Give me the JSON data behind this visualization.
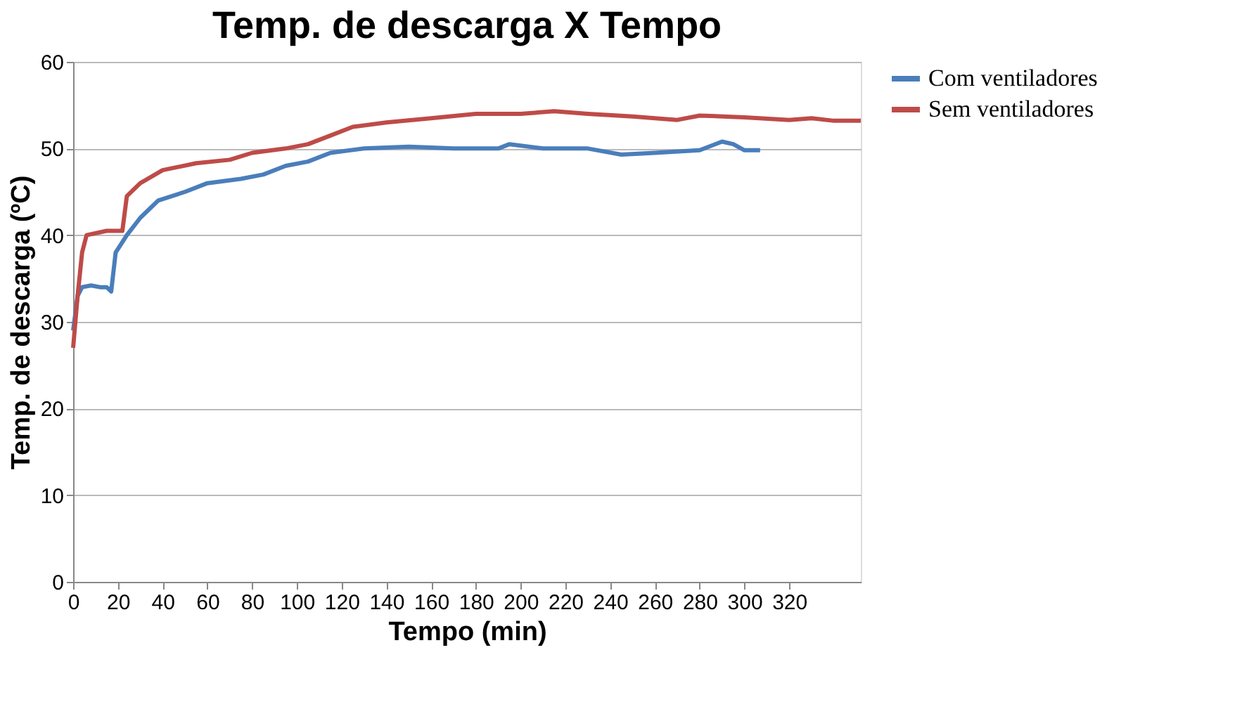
{
  "chart_data": {
    "type": "line",
    "title": "Temp. de descarga X Tempo",
    "xlabel": "Tempo (min)",
    "ylabel": "Temp. de descarga (ºC)",
    "xlim": [
      0,
      352
    ],
    "xticks": [
      0,
      20,
      40,
      60,
      80,
      100,
      120,
      140,
      160,
      180,
      200,
      220,
      240,
      260,
      280,
      300,
      320
    ],
    "ylim": [
      0,
      60
    ],
    "yticks": [
      0,
      10,
      20,
      30,
      40,
      50,
      60
    ],
    "grid": "y",
    "legend": "right",
    "marker": "none",
    "line_style": "solid",
    "series": [
      {
        "name": "Com ventiladores",
        "color": "#4a7ebb",
        "x": [
          0,
          2,
          4,
          8,
          12,
          15,
          17,
          19,
          24,
          30,
          38,
          50,
          60,
          75,
          85,
          95,
          105,
          115,
          130,
          150,
          170,
          190,
          195,
          210,
          230,
          245,
          260,
          280,
          290,
          295,
          300,
          307
        ],
        "values": [
          29,
          33,
          34,
          34.2,
          34,
          34,
          33.5,
          38,
          40,
          42,
          44,
          45,
          46,
          46.5,
          47,
          48,
          48.5,
          49.5,
          50,
          50.2,
          50,
          50,
          50.5,
          50,
          50,
          49.3,
          49.5,
          49.8,
          50.8,
          50.5,
          49.8,
          49.8
        ]
      },
      {
        "name": "Sem ventiladores",
        "color": "#be4b48",
        "x": [
          0,
          2,
          4,
          6,
          15,
          22,
          24,
          30,
          40,
          55,
          70,
          80,
          95,
          105,
          115,
          125,
          140,
          160,
          180,
          200,
          215,
          230,
          250,
          270,
          280,
          300,
          320,
          330,
          340,
          352
        ],
        "values": [
          27,
          33,
          38,
          40,
          40.5,
          40.5,
          44.5,
          46,
          47.5,
          48.3,
          48.7,
          49.5,
          50,
          50.5,
          51.5,
          52.5,
          53,
          53.5,
          54,
          54,
          54.3,
          54,
          53.7,
          53.3,
          53.8,
          53.6,
          53.3,
          53.5,
          53.2,
          53.2
        ]
      }
    ]
  }
}
